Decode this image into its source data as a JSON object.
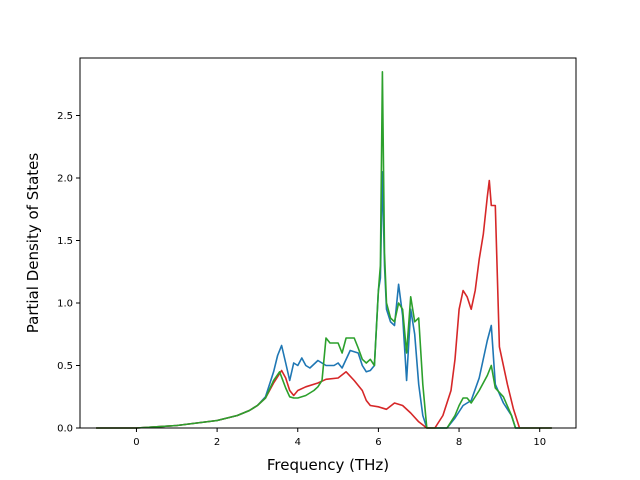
{
  "chart_data": {
    "type": "line",
    "title": "",
    "xlabel": "Frequency (THz)",
    "ylabel": "Partial Density of States",
    "xlim": [
      -1.4,
      10.9
    ],
    "ylim": [
      0.0,
      2.96
    ],
    "xticks": [
      0,
      2,
      4,
      6,
      8,
      10
    ],
    "yticks": [
      0.0,
      0.5,
      1.0,
      1.5,
      2.0,
      2.5
    ],
    "xtick_labels": [
      "0",
      "2",
      "4",
      "6",
      "8",
      "10"
    ],
    "ytick_labels": [
      "0.0",
      "0.5",
      "1.0",
      "1.5",
      "2.0",
      "2.5"
    ],
    "grid": false,
    "legend": "none",
    "series": [
      {
        "color": "#1f77b4",
        "x": [
          -1.0,
          0.0,
          0.5,
          1.0,
          1.5,
          2.0,
          2.5,
          2.8,
          3.0,
          3.2,
          3.4,
          3.5,
          3.6,
          3.7,
          3.8,
          3.9,
          4.0,
          4.1,
          4.2,
          4.3,
          4.5,
          4.7,
          4.9,
          5.0,
          5.1,
          5.3,
          5.5,
          5.6,
          5.7,
          5.8,
          5.9,
          6.0,
          6.05,
          6.1,
          6.15,
          6.2,
          6.3,
          6.4,
          6.5,
          6.6,
          6.7,
          6.8,
          6.9,
          7.0,
          7.1,
          7.2,
          7.5,
          7.7,
          7.9,
          8.1,
          8.3,
          8.5,
          8.7,
          8.8,
          8.9,
          9.1,
          9.3,
          9.4,
          9.5,
          10.0,
          10.3
        ],
        "y": [
          0.0,
          0.0,
          0.01,
          0.02,
          0.04,
          0.06,
          0.1,
          0.14,
          0.18,
          0.25,
          0.45,
          0.58,
          0.66,
          0.52,
          0.38,
          0.52,
          0.5,
          0.56,
          0.5,
          0.48,
          0.54,
          0.5,
          0.5,
          0.52,
          0.48,
          0.62,
          0.6,
          0.5,
          0.45,
          0.46,
          0.5,
          1.1,
          1.2,
          2.05,
          1.3,
          0.95,
          0.85,
          0.82,
          1.15,
          0.9,
          0.38,
          0.95,
          0.75,
          0.35,
          0.1,
          0.0,
          0.0,
          0.0,
          0.08,
          0.18,
          0.22,
          0.4,
          0.7,
          0.82,
          0.35,
          0.2,
          0.1,
          0.0,
          0.0,
          0.0,
          0.0
        ]
      },
      {
        "color": "#d62728",
        "x": [
          -1.0,
          0.0,
          0.5,
          1.0,
          1.5,
          2.0,
          2.5,
          2.8,
          3.0,
          3.2,
          3.4,
          3.6,
          3.7,
          3.8,
          3.9,
          4.0,
          4.2,
          4.5,
          4.7,
          5.0,
          5.2,
          5.4,
          5.6,
          5.7,
          5.8,
          6.0,
          6.2,
          6.4,
          6.6,
          6.8,
          7.0,
          7.2,
          7.4,
          7.6,
          7.8,
          7.9,
          8.0,
          8.1,
          8.2,
          8.3,
          8.4,
          8.5,
          8.6,
          8.7,
          8.75,
          8.8,
          8.9,
          9.0,
          9.2,
          9.35,
          9.5,
          10.0,
          10.3
        ],
        "y": [
          0.0,
          0.0,
          0.01,
          0.02,
          0.04,
          0.06,
          0.1,
          0.14,
          0.18,
          0.24,
          0.36,
          0.46,
          0.4,
          0.3,
          0.26,
          0.3,
          0.33,
          0.36,
          0.39,
          0.4,
          0.45,
          0.38,
          0.3,
          0.22,
          0.18,
          0.17,
          0.15,
          0.2,
          0.18,
          0.12,
          0.05,
          0.0,
          0.0,
          0.1,
          0.3,
          0.55,
          0.95,
          1.1,
          1.05,
          0.95,
          1.1,
          1.35,
          1.55,
          1.85,
          1.98,
          1.78,
          1.78,
          0.65,
          0.35,
          0.15,
          0.0,
          0.0,
          0.0
        ]
      },
      {
        "color": "#2ca02c",
        "x": [
          -1.0,
          0.0,
          0.5,
          1.0,
          1.5,
          2.0,
          2.5,
          2.8,
          3.0,
          3.2,
          3.4,
          3.55,
          3.7,
          3.8,
          3.9,
          4.0,
          4.2,
          4.4,
          4.5,
          4.6,
          4.7,
          4.8,
          5.0,
          5.1,
          5.2,
          5.4,
          5.5,
          5.6,
          5.7,
          5.8,
          5.9,
          6.0,
          6.05,
          6.1,
          6.15,
          6.2,
          6.3,
          6.4,
          6.5,
          6.6,
          6.7,
          6.8,
          6.9,
          7.0,
          7.1,
          7.2,
          7.5,
          7.7,
          7.9,
          8.0,
          8.1,
          8.2,
          8.3,
          8.5,
          8.7,
          8.8,
          8.9,
          9.1,
          9.3,
          9.4,
          9.5,
          10.0,
          10.3
        ],
        "y": [
          0.0,
          0.0,
          0.01,
          0.02,
          0.04,
          0.06,
          0.1,
          0.14,
          0.18,
          0.24,
          0.38,
          0.45,
          0.32,
          0.25,
          0.24,
          0.24,
          0.26,
          0.3,
          0.33,
          0.38,
          0.72,
          0.68,
          0.68,
          0.6,
          0.72,
          0.72,
          0.64,
          0.55,
          0.52,
          0.55,
          0.5,
          1.1,
          1.3,
          2.85,
          1.4,
          1.0,
          0.88,
          0.85,
          1.0,
          0.95,
          0.6,
          1.05,
          0.85,
          0.88,
          0.35,
          0.0,
          0.0,
          0.0,
          0.1,
          0.18,
          0.24,
          0.24,
          0.2,
          0.3,
          0.42,
          0.5,
          0.32,
          0.25,
          0.1,
          0.0,
          0.0,
          0.0,
          0.0
        ]
      }
    ]
  }
}
